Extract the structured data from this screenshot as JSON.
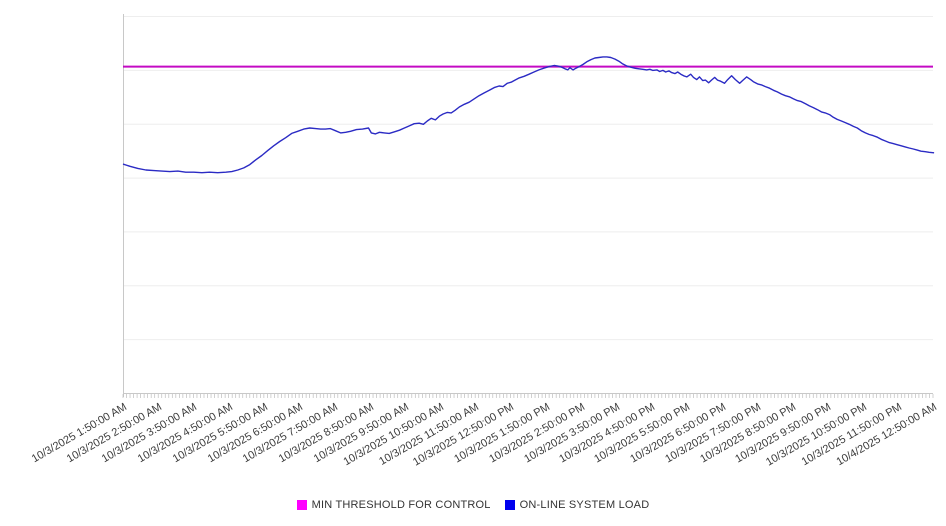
{
  "chart_data": {
    "type": "line",
    "title": "",
    "xlabel": "",
    "ylabel": "",
    "y_axis": {
      "labels_visible": false,
      "range_units": [
        0,
        7
      ],
      "gridline_divisions": 7,
      "grid_on": true
    },
    "x_axis": {
      "hours_span": 23,
      "minor_ticks_per_hour": 10,
      "labels_rotation_deg": -30
    },
    "x_labels": [
      "10/3/2025 1:50:00 AM",
      "10/3/2025 2:50:00 AM",
      "10/3/2025 3:50:00 AM",
      "10/3/2025 4:50:00 AM",
      "10/3/2025 5:50:00 AM",
      "10/3/2025 6:50:00 AM",
      "10/3/2025 7:50:00 AM",
      "10/3/2025 8:50:00 AM",
      "10/3/2025 9:50:00 AM",
      "10/3/2025 10:50:00 AM",
      "10/3/2025 11:50:00 AM",
      "10/3/2025 12:50:00 PM",
      "10/3/2025 1:50:00 PM",
      "10/3/2025 2:50:00 PM",
      "10/3/2025 3:50:00 PM",
      "10/3/2025 4:50:00 PM",
      "10/3/2025 5:50:00 PM",
      "10/3/2025 6:50:00 PM",
      "10/3/2025 7:50:00 PM",
      "10/3/2025 8:50:00 PM",
      "10/3/2025 9:50:00 PM",
      "10/3/2025 10:50:00 PM",
      "10/3/2025 11:50:00 PM",
      "10/4/2025 12:50:00 AM"
    ],
    "threshold": {
      "name": "MIN THRESHOLD FOR CONTROL",
      "value_units": 6.06,
      "color": "#c40ac4"
    },
    "series": [
      {
        "name": "ON-LINE SYSTEM LOAD",
        "color": "#2b2bc4",
        "points": [
          [
            0,
            4.25
          ],
          [
            0.2,
            4.21
          ],
          [
            0.42,
            4.17
          ],
          [
            0.65,
            4.14
          ],
          [
            0.88,
            4.13
          ],
          [
            1.1,
            4.12
          ],
          [
            1.33,
            4.11
          ],
          [
            1.56,
            4.12
          ],
          [
            1.78,
            4.1
          ],
          [
            2.01,
            4.1
          ],
          [
            2.24,
            4.09
          ],
          [
            2.46,
            4.1
          ],
          [
            2.69,
            4.09
          ],
          [
            2.92,
            4.1
          ],
          [
            3.09,
            4.11
          ],
          [
            3.26,
            4.14
          ],
          [
            3.43,
            4.18
          ],
          [
            3.6,
            4.24
          ],
          [
            3.77,
            4.33
          ],
          [
            3.94,
            4.41
          ],
          [
            4.11,
            4.5
          ],
          [
            4.28,
            4.59
          ],
          [
            4.45,
            4.67
          ],
          [
            4.62,
            4.74
          ],
          [
            4.79,
            4.82
          ],
          [
            4.96,
            4.86
          ],
          [
            5.13,
            4.9
          ],
          [
            5.3,
            4.92
          ],
          [
            5.47,
            4.91
          ],
          [
            5.61,
            4.9
          ],
          [
            5.75,
            4.9
          ],
          [
            5.89,
            4.91
          ],
          [
            6.03,
            4.87
          ],
          [
            6.18,
            4.83
          ],
          [
            6.32,
            4.84
          ],
          [
            6.46,
            4.86
          ],
          [
            6.63,
            4.89
          ],
          [
            6.8,
            4.9
          ],
          [
            6.97,
            4.92
          ],
          [
            7.05,
            4.83
          ],
          [
            7.17,
            4.81
          ],
          [
            7.28,
            4.84
          ],
          [
            7.42,
            4.83
          ],
          [
            7.56,
            4.82
          ],
          [
            7.71,
            4.85
          ],
          [
            7.85,
            4.88
          ],
          [
            7.99,
            4.92
          ],
          [
            8.13,
            4.96
          ],
          [
            8.27,
            5
          ],
          [
            8.41,
            5.01
          ],
          [
            8.53,
            4.99
          ],
          [
            8.64,
            5.05
          ],
          [
            8.75,
            5.1
          ],
          [
            8.87,
            5.07
          ],
          [
            8.98,
            5.14
          ],
          [
            9.09,
            5.18
          ],
          [
            9.21,
            5.21
          ],
          [
            9.32,
            5.2
          ],
          [
            9.43,
            5.25
          ],
          [
            9.55,
            5.31
          ],
          [
            9.69,
            5.36
          ],
          [
            9.83,
            5.4
          ],
          [
            9.97,
            5.46
          ],
          [
            10.11,
            5.52
          ],
          [
            10.25,
            5.57
          ],
          [
            10.4,
            5.62
          ],
          [
            10.54,
            5.67
          ],
          [
            10.68,
            5.7
          ],
          [
            10.79,
            5.69
          ],
          [
            10.91,
            5.75
          ],
          [
            11.02,
            5.77
          ],
          [
            11.13,
            5.81
          ],
          [
            11.25,
            5.85
          ],
          [
            11.39,
            5.88
          ],
          [
            11.53,
            5.92
          ],
          [
            11.67,
            5.96
          ],
          [
            11.81,
            6
          ],
          [
            11.95,
            6.03
          ],
          [
            12.1,
            6.06
          ],
          [
            12.24,
            6.08
          ],
          [
            12.35,
            6.07
          ],
          [
            12.46,
            6.05
          ],
          [
            12.55,
            6.02
          ],
          [
            12.63,
            6
          ],
          [
            12.69,
            6.04
          ],
          [
            12.78,
            6
          ],
          [
            12.86,
            6.03
          ],
          [
            12.95,
            6.06
          ],
          [
            13.06,
            6.1
          ],
          [
            13.17,
            6.15
          ],
          [
            13.29,
            6.19
          ],
          [
            13.4,
            6.22
          ],
          [
            13.51,
            6.23
          ],
          [
            13.63,
            6.24
          ],
          [
            13.74,
            6.24
          ],
          [
            13.85,
            6.23
          ],
          [
            13.97,
            6.2
          ],
          [
            14.08,
            6.16
          ],
          [
            14.19,
            6.11
          ],
          [
            14.31,
            6.07
          ],
          [
            14.42,
            6.05
          ],
          [
            14.53,
            6.03
          ],
          [
            14.65,
            6.02
          ],
          [
            14.76,
            6.01
          ],
          [
            14.87,
            6
          ],
          [
            14.96,
            6.01
          ],
          [
            15.04,
            5.99
          ],
          [
            15.16,
            6
          ],
          [
            15.24,
            5.97
          ],
          [
            15.33,
            5.99
          ],
          [
            15.41,
            5.96
          ],
          [
            15.5,
            5.98
          ],
          [
            15.58,
            5.95
          ],
          [
            15.67,
            5.93
          ],
          [
            15.75,
            5.96
          ],
          [
            15.84,
            5.92
          ],
          [
            15.92,
            5.89
          ],
          [
            16.01,
            5.87
          ],
          [
            16.12,
            5.92
          ],
          [
            16.2,
            5.86
          ],
          [
            16.29,
            5.82
          ],
          [
            16.37,
            5.87
          ],
          [
            16.46,
            5.8
          ],
          [
            16.54,
            5.81
          ],
          [
            16.63,
            5.76
          ],
          [
            16.71,
            5.81
          ],
          [
            16.8,
            5.86
          ],
          [
            16.88,
            5.81
          ],
          [
            16.97,
            5.79
          ],
          [
            17.08,
            5.75
          ],
          [
            17.17,
            5.82
          ],
          [
            17.28,
            5.89
          ],
          [
            17.39,
            5.82
          ],
          [
            17.51,
            5.75
          ],
          [
            17.59,
            5.8
          ],
          [
            17.71,
            5.87
          ],
          [
            17.82,
            5.82
          ],
          [
            17.9,
            5.78
          ],
          [
            18.02,
            5.74
          ],
          [
            18.13,
            5.72
          ],
          [
            18.24,
            5.69
          ],
          [
            18.36,
            5.66
          ],
          [
            18.47,
            5.62
          ],
          [
            18.58,
            5.59
          ],
          [
            18.7,
            5.55
          ],
          [
            18.81,
            5.52
          ],
          [
            18.92,
            5.5
          ],
          [
            19.04,
            5.46
          ],
          [
            19.15,
            5.43
          ],
          [
            19.26,
            5.41
          ],
          [
            19.38,
            5.37
          ],
          [
            19.49,
            5.33
          ],
          [
            19.6,
            5.3
          ],
          [
            19.72,
            5.26
          ],
          [
            19.83,
            5.22
          ],
          [
            19.94,
            5.2
          ],
          [
            20.06,
            5.17
          ],
          [
            20.17,
            5.12
          ],
          [
            20.28,
            5.08
          ],
          [
            20.4,
            5.05
          ],
          [
            20.51,
            5.02
          ],
          [
            20.62,
            4.99
          ],
          [
            20.74,
            4.95
          ],
          [
            20.85,
            4.92
          ],
          [
            20.96,
            4.87
          ],
          [
            21.08,
            4.83
          ],
          [
            21.19,
            4.8
          ],
          [
            21.3,
            4.78
          ],
          [
            21.42,
            4.75
          ],
          [
            21.53,
            4.71
          ],
          [
            21.64,
            4.68
          ],
          [
            21.76,
            4.65
          ],
          [
            21.87,
            4.63
          ],
          [
            21.98,
            4.61
          ],
          [
            22.1,
            4.59
          ],
          [
            22.21,
            4.57
          ],
          [
            22.32,
            4.55
          ],
          [
            22.44,
            4.53
          ],
          [
            22.55,
            4.51
          ],
          [
            22.66,
            4.49
          ],
          [
            22.78,
            4.48
          ],
          [
            22.89,
            4.47
          ],
          [
            23.03,
            4.46
          ]
        ]
      }
    ],
    "legend_position": "bottom-center"
  },
  "legend": {
    "items": [
      {
        "label": "MIN THRESHOLD FOR CONTROL",
        "swatch_color": "#ff00ff"
      },
      {
        "label": "ON-LINE SYSTEM LOAD",
        "swatch_color": "#0000ee"
      }
    ]
  },
  "colors": {
    "background": "#ffffff",
    "gridline": "#eeeeee",
    "axis": "#c8c8c8",
    "tick": "#bdbdbd",
    "axis_label_text": "#3c3c3c",
    "legend_text": "#333333"
  }
}
